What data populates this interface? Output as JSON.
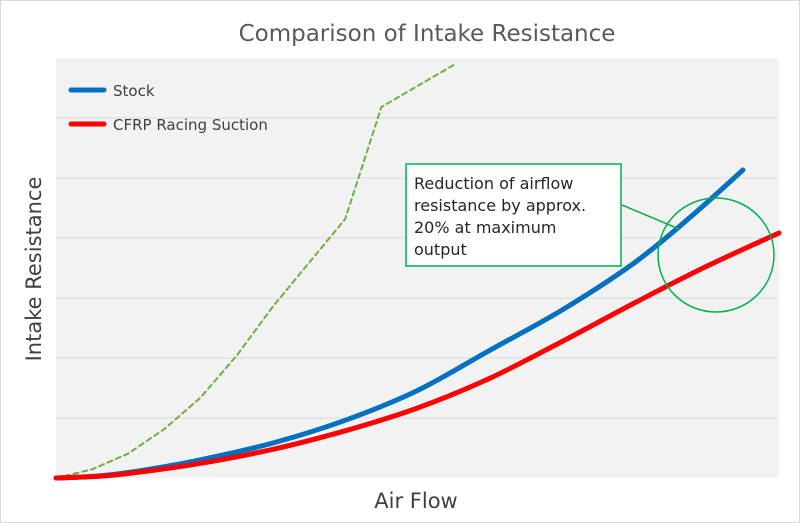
{
  "chart_data": {
    "type": "line",
    "title": "Comparison of Intake Resistance",
    "xlabel": "Air Flow",
    "ylabel": "Intake Resistance",
    "x_ticks_labeled": false,
    "y_ticks_labeled": false,
    "grid": "horizontal",
    "plot_background": "#f2f2f2",
    "legend": {
      "placement": "top-left",
      "entries": [
        "Stock",
        "CFRP Racing Suction"
      ]
    },
    "series": [
      {
        "name": "Stock",
        "color": "#0070c0",
        "style": "solid",
        "x": [
          0,
          0.06,
          0.12,
          0.2,
          0.3,
          0.4,
          0.5,
          0.6,
          0.7,
          0.8,
          0.88,
          0.95
        ],
        "y": [
          0,
          0.006,
          0.022,
          0.052,
          0.1,
          0.165,
          0.25,
          0.365,
          0.48,
          0.615,
          0.75,
          0.88
        ]
      },
      {
        "name": "CFRP Racing Suction",
        "color": "#ff0000",
        "style": "solid",
        "x": [
          0,
          0.06,
          0.12,
          0.2,
          0.3,
          0.4,
          0.5,
          0.6,
          0.7,
          0.8,
          0.9,
          1.0
        ],
        "y": [
          0,
          0.005,
          0.018,
          0.042,
          0.082,
          0.135,
          0.2,
          0.285,
          0.39,
          0.5,
          0.605,
          0.7
        ]
      },
      {
        "color": "#70ad47",
        "style": "dashed",
        "x": [
          0,
          0.05,
          0.1,
          0.15,
          0.2,
          0.25,
          0.3,
          0.36,
          0.4,
          0.45,
          0.5,
          0.55
        ],
        "y": [
          0,
          0.025,
          0.07,
          0.14,
          0.23,
          0.35,
          0.49,
          0.64,
          0.74,
          1.06,
          1.12,
          1.18
        ]
      }
    ],
    "xlim": [
      0,
      1
    ],
    "ylim": [
      0,
      1.2
    ],
    "annotation": {
      "lines": [
        "Reduction of airflow",
        "resistance by approx.",
        "20% at maximum",
        "output"
      ],
      "border_color": "#00b050"
    }
  }
}
